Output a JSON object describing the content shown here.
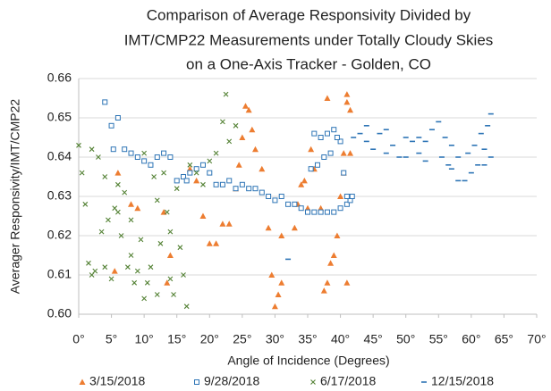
{
  "chart_data": {
    "type": "scatter",
    "title": [
      "Comparison of Average Responsivity Divided by",
      "IMT/CMP22 Measurements under Totally Cloudy Skies",
      "on a One-Axis Tracker - Golden, CO"
    ],
    "x_label": "Angle of Incidence (Degrees)",
    "y_label": "Averager Responsivity/IMT/CMP22",
    "xlim": [
      0,
      70
    ],
    "ylim": [
      0.6,
      0.66
    ],
    "xticks": [
      {
        "value": 0,
        "label": "0°"
      },
      {
        "value": 5,
        "label": "5°"
      },
      {
        "value": 10,
        "label": "10°"
      },
      {
        "value": 15,
        "label": "15°"
      },
      {
        "value": 20,
        "label": "20°"
      },
      {
        "value": 25,
        "label": "25°"
      },
      {
        "value": 30,
        "label": "30°"
      },
      {
        "value": 35,
        "label": "35°"
      },
      {
        "value": 40,
        "label": "40°"
      },
      {
        "value": 45,
        "label": "45°"
      },
      {
        "value": 50,
        "label": "50°"
      },
      {
        "value": 55,
        "label": "55°"
      },
      {
        "value": 60,
        "label": "60°"
      },
      {
        "value": 65,
        "label": "65°"
      },
      {
        "value": 70,
        "label": "70°"
      }
    ],
    "yticks": [
      {
        "value": 0.6,
        "label": "0.60"
      },
      0.61,
      0.62,
      0.63,
      0.64,
      0.65,
      0.66
    ],
    "grid": true,
    "legend": "bottom",
    "series": [
      {
        "name": "3/15/2018",
        "color": "#ed7d31",
        "marker": "triangle",
        "x": [
          5.5,
          6,
          8,
          9,
          13,
          14,
          13.5,
          16,
          17,
          18,
          19,
          20,
          21,
          22,
          23,
          24,
          24.5,
          25,
          25.5,
          26,
          26.5,
          27,
          28,
          29,
          29.5,
          30,
          30.5,
          31,
          31,
          33,
          33.5,
          34,
          34.5,
          35.5,
          36,
          37,
          37.5,
          38,
          38,
          38.5,
          39,
          39.5,
          40,
          40.5,
          40.5,
          41,
          41,
          41.5,
          41,
          41.5,
          35
        ],
        "values": [
          0.611,
          0.636,
          0.628,
          0.627,
          0.626,
          0.615,
          0.608,
          0.635,
          0.637,
          0.634,
          0.625,
          0.618,
          0.618,
          0.623,
          0.623,
          0.632,
          0.638,
          0.645,
          0.653,
          0.652,
          0.647,
          0.642,
          0.637,
          0.622,
          0.61,
          0.602,
          0.605,
          0.608,
          0.62,
          0.622,
          0.628,
          0.633,
          0.634,
          0.642,
          0.637,
          0.627,
          0.606,
          0.608,
          0.655,
          0.613,
          0.615,
          0.62,
          0.63,
          0.636,
          0.641,
          0.656,
          0.654,
          0.652,
          0.608,
          0.641,
          0.627
        ]
      },
      {
        "name": "9/28/2018",
        "color": "#2e75b6",
        "marker": "square",
        "x": [
          4,
          5,
          6,
          7,
          8,
          9,
          10,
          11,
          12,
          13,
          14,
          15,
          16,
          17,
          18,
          19,
          20,
          21,
          22,
          23,
          24,
          25,
          26,
          27,
          28,
          29,
          30,
          31,
          32,
          33,
          34,
          35,
          36,
          37,
          38,
          39,
          40,
          41,
          41.5,
          41.8,
          36,
          37,
          38,
          39,
          40,
          40.5,
          41,
          35.5,
          36.5,
          37.5,
          38.5,
          39.5,
          5.3,
          16.5
        ],
        "values": [
          0.654,
          0.648,
          0.65,
          0.642,
          0.641,
          0.64,
          0.639,
          0.638,
          0.64,
          0.641,
          0.64,
          0.634,
          0.635,
          0.636,
          0.637,
          0.638,
          0.636,
          0.633,
          0.633,
          0.634,
          0.632,
          0.633,
          0.632,
          0.632,
          0.631,
          0.63,
          0.629,
          0.63,
          0.628,
          0.628,
          0.627,
          0.626,
          0.626,
          0.626,
          0.626,
          0.626,
          0.627,
          0.628,
          0.629,
          0.63,
          0.646,
          0.645,
          0.646,
          0.647,
          0.644,
          0.636,
          0.63,
          0.637,
          0.638,
          0.64,
          0.641,
          0.645,
          0.642,
          0.634
        ]
      },
      {
        "name": "6/17/2018",
        "color": "#548235",
        "marker": "x",
        "x": [
          0,
          0.5,
          1,
          1.5,
          2,
          2.5,
          3,
          3.5,
          4,
          4.5,
          5,
          5.5,
          6,
          6.5,
          7,
          7.5,
          8,
          8.5,
          9,
          9.5,
          10,
          10.5,
          11,
          11.5,
          12,
          12.5,
          13,
          13.5,
          14,
          14.5,
          15,
          15.5,
          16,
          16.5,
          17,
          18,
          19,
          20,
          21,
          22,
          22.5,
          23,
          24,
          2,
          6,
          10,
          14,
          4,
          8,
          12
        ],
        "values": [
          0.643,
          0.636,
          0.628,
          0.613,
          0.61,
          0.611,
          0.64,
          0.621,
          0.635,
          0.624,
          0.609,
          0.627,
          0.626,
          0.62,
          0.631,
          0.612,
          0.615,
          0.608,
          0.611,
          0.619,
          0.604,
          0.608,
          0.612,
          0.635,
          0.629,
          0.618,
          0.636,
          0.626,
          0.609,
          0.605,
          0.632,
          0.617,
          0.61,
          0.602,
          0.638,
          0.636,
          0.633,
          0.639,
          0.641,
          0.649,
          0.656,
          0.644,
          0.648,
          0.642,
          0.633,
          0.641,
          0.621,
          0.612,
          0.624,
          0.605
        ]
      },
      {
        "name": "12/15/2018",
        "color": "#2e75b6",
        "marker": "dash",
        "x": [
          32,
          42,
          43,
          44,
          45,
          46,
          47,
          48,
          49,
          50,
          51,
          52,
          53,
          54,
          55,
          56,
          57,
          58,
          59,
          60,
          61,
          62,
          62.5,
          63,
          52,
          53,
          55.5,
          56.5,
          58,
          59.5,
          60.5,
          61.5,
          62,
          63,
          44,
          47,
          50,
          57
        ],
        "values": [
          0.614,
          0.645,
          0.646,
          0.644,
          0.642,
          0.646,
          0.647,
          0.643,
          0.64,
          0.645,
          0.644,
          0.641,
          0.639,
          0.647,
          0.649,
          0.645,
          0.637,
          0.634,
          0.634,
          0.636,
          0.638,
          0.642,
          0.648,
          0.651,
          0.645,
          0.644,
          0.64,
          0.638,
          0.64,
          0.641,
          0.643,
          0.646,
          0.638,
          0.64,
          0.648,
          0.641,
          0.64,
          0.643
        ]
      }
    ]
  }
}
